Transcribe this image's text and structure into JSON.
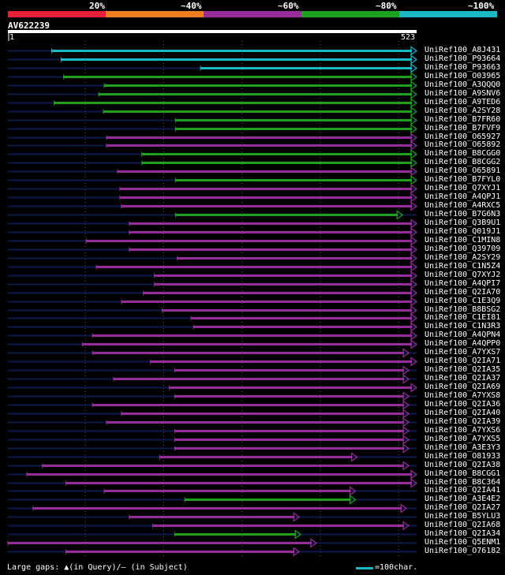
{
  "legend": {
    "bands": [
      {
        "label": "20%",
        "color": "#e8213a"
      },
      {
        "label": "~40%",
        "color": "#ee7f1c"
      },
      {
        "label": "~60%",
        "color": "#982c9b"
      },
      {
        "label": "~80%",
        "color": "#1da11d"
      },
      {
        "label": "~100%",
        "color": "#1ab8c4"
      }
    ]
  },
  "query": {
    "name": "AV622239",
    "start_label": "1",
    "end_label": "523",
    "length": 523
  },
  "colors": {
    "c100": "#1ab8c4",
    "c80": "#1da11d",
    "c60": "#982c9b",
    "c40": "#ee7f1c",
    "c20": "#e8213a",
    "backbone": "#0d1a4a",
    "gap": "#6c2a70",
    "marker": "#ffff66"
  },
  "chart_data": {
    "type": "alignment",
    "query_length": 523,
    "hits": [
      {
        "name": "UniRef100_A8J431",
        "q_start": 57,
        "q_end": 523,
        "identity_band": "~100%",
        "arrow": "right"
      },
      {
        "name": "UniRef100_P93664",
        "q_start": 69,
        "q_end": 523,
        "identity_band": "~100%",
        "arrow": "right"
      },
      {
        "name": "UniRef100_P93663",
        "q_start": 247,
        "q_end": 523,
        "identity_band": "~100%",
        "arrow": "right"
      },
      {
        "name": "UniRef100_O03965",
        "q_start": 72,
        "q_end": 523,
        "identity_band": "~80%",
        "arrow": "right"
      },
      {
        "name": "UniRef100_A3QQQ0",
        "q_start": 124,
        "q_end": 523,
        "identity_band": "~80%",
        "arrow": "right"
      },
      {
        "name": "UniRef100_A9SNV6",
        "q_start": 117,
        "q_end": 523,
        "identity_band": "~80%",
        "arrow": "right"
      },
      {
        "name": "UniRef100_A9TED6",
        "q_start": 60,
        "q_end": 523,
        "identity_band": "~80%",
        "arrow": "right"
      },
      {
        "name": "UniRef100_A2SY28",
        "q_start": 123,
        "q_end": 523,
        "identity_band": "~80%",
        "arrow": "right"
      },
      {
        "name": "UniRef100_B7FR60",
        "q_start": 215,
        "q_end": 523,
        "identity_band": "~80%",
        "arrow": "right"
      },
      {
        "name": "UniRef100_B7FVF9",
        "q_start": 215,
        "q_end": 523,
        "identity_band": "~80%",
        "arrow": "right"
      },
      {
        "name": "UniRef100_O65927",
        "q_start": 127,
        "q_end": 523,
        "identity_band": "~60%",
        "arrow": "right"
      },
      {
        "name": "UniRef100_O65892",
        "q_start": 127,
        "q_end": 523,
        "identity_band": "~60%",
        "arrow": "right"
      },
      {
        "name": "UniRef100_B8CGG0",
        "q_start": 172,
        "q_end": 523,
        "identity_band": "~80%",
        "arrow": "right"
      },
      {
        "name": "UniRef100_B8CGG2",
        "q_start": 172,
        "q_end": 523,
        "identity_band": "~80%",
        "arrow": "right"
      },
      {
        "name": "UniRef100_O65891",
        "q_start": 141,
        "q_end": 523,
        "identity_band": "~60%",
        "arrow": "right"
      },
      {
        "name": "UniRef100_B7FYL0",
        "q_start": 215,
        "q_end": 523,
        "identity_band": "~80%",
        "arrow": "right"
      },
      {
        "name": "UniRef100_Q7XYJ1",
        "q_start": 144,
        "q_end": 523,
        "identity_band": "~60%",
        "arrow": "right"
      },
      {
        "name": "UniRef100_A4QPJ1",
        "q_start": 144,
        "q_end": 523,
        "identity_band": "~60%",
        "arrow": "right"
      },
      {
        "name": "UniRef100_A4RXC5",
        "q_start": 146,
        "q_end": 523,
        "identity_band": "~60%",
        "arrow": "right"
      },
      {
        "name": "UniRef100_B7G6N3",
        "q_start": 215,
        "q_end": 505,
        "identity_band": "~80%",
        "arrow": "right"
      },
      {
        "name": "UniRef100_Q3B9U1",
        "q_start": 156,
        "q_end": 523,
        "identity_band": "~60%",
        "arrow": "right"
      },
      {
        "name": "UniRef100_Q019J1",
        "q_start": 156,
        "q_end": 523,
        "identity_band": "~60%",
        "arrow": "right"
      },
      {
        "name": "UniRef100_C1MIN8",
        "q_start": 101,
        "q_end": 523,
        "identity_band": "~60%",
        "arrow": "right"
      },
      {
        "name": "UniRef100_Q39709",
        "q_start": 156,
        "q_end": 523,
        "identity_band": "~60%",
        "arrow": "right"
      },
      {
        "name": "UniRef100_A2SY29",
        "q_start": 217,
        "q_end": 523,
        "identity_band": "~60%",
        "arrow": "right"
      },
      {
        "name": "UniRef100_C1N5Z4",
        "q_start": 114,
        "q_end": 523,
        "identity_band": "~60%",
        "arrow": "right"
      },
      {
        "name": "UniRef100_Q7XYJ2",
        "q_start": 188,
        "q_end": 523,
        "identity_band": "~60%",
        "arrow": "right"
      },
      {
        "name": "UniRef100_A4QPI7",
        "q_start": 188,
        "q_end": 523,
        "identity_band": "~60%",
        "arrow": "right"
      },
      {
        "name": "UniRef100_Q2IA70",
        "q_start": 174,
        "q_end": 523,
        "identity_band": "~60%",
        "arrow": "right"
      },
      {
        "name": "UniRef100_C1E3Q9",
        "q_start": 146,
        "q_end": 523,
        "identity_band": "~60%",
        "arrow": "right"
      },
      {
        "name": "UniRef100_B8BSG2",
        "q_start": 198,
        "q_end": 523,
        "identity_band": "~60%",
        "arrow": "right"
      },
      {
        "name": "UniRef100_C1EI81",
        "q_start": 235,
        "q_end": 523,
        "identity_band": "~60%",
        "arrow": "right"
      },
      {
        "name": "UniRef100_C1N3R3",
        "q_start": 238,
        "q_end": 523,
        "identity_band": "~60%",
        "arrow": "right"
      },
      {
        "name": "UniRef100_A4QPN4",
        "q_start": 109,
        "q_end": 523,
        "identity_band": "~60%",
        "arrow": "right"
      },
      {
        "name": "UniRef100_A4QPP0",
        "q_start": 96,
        "q_end": 523,
        "identity_band": "~60%",
        "arrow": "right"
      },
      {
        "name": "UniRef100_A7YXS7",
        "q_start": 109,
        "q_end": 513,
        "identity_band": "~60%",
        "arrow": "right"
      },
      {
        "name": "UniRef100_Q2IA71",
        "q_start": 183,
        "q_end": 523,
        "identity_band": "~60%",
        "arrow": "right"
      },
      {
        "name": "UniRef100_Q2IA35",
        "q_start": 214,
        "q_end": 513,
        "identity_band": "~60%",
        "arrow": "right"
      },
      {
        "name": "UniRef100_Q2IA37",
        "q_start": 136,
        "q_end": 513,
        "identity_band": "~60%",
        "arrow": "right"
      },
      {
        "name": "UniRef100_Q2IA69",
        "q_start": 207,
        "q_end": 523,
        "identity_band": "~60%",
        "arrow": "right"
      },
      {
        "name": "UniRef100_A7YXS8",
        "q_start": 214,
        "q_end": 513,
        "identity_band": "~60%",
        "arrow": "right"
      },
      {
        "name": "UniRef100_Q2IA36",
        "q_start": 109,
        "q_end": 513,
        "identity_band": "~60%",
        "arrow": "right"
      },
      {
        "name": "UniRef100_Q2IA40",
        "q_start": 146,
        "q_end": 513,
        "identity_band": "~60%",
        "arrow": "right"
      },
      {
        "name": "UniRef100_Q2IA39",
        "q_start": 127,
        "q_end": 513,
        "identity_band": "~60%",
        "arrow": "right"
      },
      {
        "name": "UniRef100_A7YXS6",
        "q_start": 214,
        "q_end": 513,
        "identity_band": "~60%",
        "arrow": "right"
      },
      {
        "name": "UniRef100_A7YXS5",
        "q_start": 214,
        "q_end": 513,
        "identity_band": "~60%",
        "arrow": "right"
      },
      {
        "name": "UniRef100_A3E3Y3",
        "q_start": 214,
        "q_end": 513,
        "identity_band": "~60%",
        "arrow": "right"
      },
      {
        "name": "UniRef100_O81933",
        "q_start": 195,
        "q_end": 447,
        "identity_band": "~60%",
        "arrow": "right"
      },
      {
        "name": "UniRef100_Q2IA38",
        "q_start": 45,
        "q_end": 513,
        "identity_band": "~60%",
        "arrow": "right"
      },
      {
        "name": "UniRef100_B8CGG1",
        "q_start": 25,
        "q_end": 523,
        "identity_band": "~60%",
        "arrow": "right"
      },
      {
        "name": "UniRef100_B8C364",
        "q_start": 75,
        "q_end": 523,
        "identity_band": "~60%",
        "arrow": "right"
      },
      {
        "name": "UniRef100_Q2IA41",
        "q_start": 124,
        "q_end": 445,
        "identity_band": "~60%",
        "arrow": "right"
      },
      {
        "name": "UniRef100_A3E4E2",
        "q_start": 227,
        "q_end": 445,
        "identity_band": "~80%",
        "arrow": "right"
      },
      {
        "name": "UniRef100_Q2IA27",
        "q_start": 33,
        "q_end": 510,
        "identity_band": "~60%",
        "arrow": "right"
      },
      {
        "name": "UniRef100_B5YLU3",
        "q_start": 156,
        "q_end": 373,
        "identity_band": "~60%",
        "arrow": "right"
      },
      {
        "name": "UniRef100_Q2IA68",
        "q_start": 186,
        "q_end": 513,
        "identity_band": "~60%",
        "arrow": "right"
      },
      {
        "name": "UniRef100_Q2IA34",
        "q_start": 214,
        "q_end": 375,
        "identity_band": "~80%",
        "arrow": "right"
      },
      {
        "name": "UniRef100_Q5ENM1",
        "q_start": 1,
        "q_end": 395,
        "identity_band": "~60%",
        "arrow": "right"
      },
      {
        "name": "UniRef100_O76182",
        "q_start": 75,
        "q_end": 373,
        "identity_band": "~60%",
        "arrow": "right"
      }
    ]
  },
  "footer": {
    "gap_text": "Large gaps: ▲(in Query)/– (in Subject)",
    "scale_text": "=100char."
  }
}
